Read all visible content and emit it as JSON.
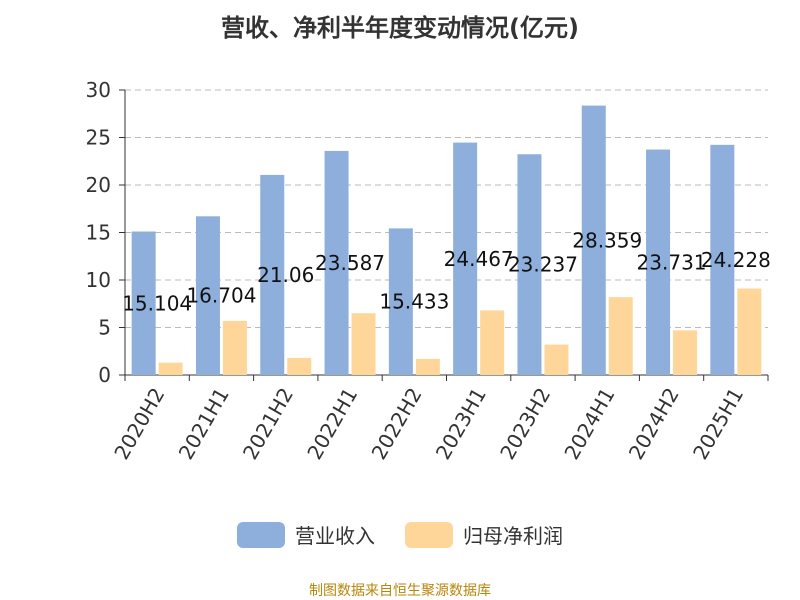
{
  "title": "营收、净利半年度变动情况(亿元)",
  "source": "制图数据来自恒生聚源数据库",
  "colors": {
    "revenue": "#8eaedb",
    "profit": "#ffd699",
    "grid": "#bbbbbb",
    "axis": "#333333"
  },
  "chart_data": {
    "type": "bar",
    "categories": [
      "2020H2",
      "2021H1",
      "2021H2",
      "2022H1",
      "2022H2",
      "2023H1",
      "2023H2",
      "2024H1",
      "2024H2",
      "2025H1"
    ],
    "series": [
      {
        "name": "营业收入",
        "values": [
          15.104,
          16.704,
          21.06,
          23.587,
          15.433,
          24.467,
          23.237,
          28.359,
          23.731,
          24.228
        ],
        "labels": [
          "15.104",
          "16.704",
          "21.06",
          "23.587",
          "15.433",
          "24.467",
          "23.237",
          "28.359",
          "23.731",
          "24.228"
        ]
      },
      {
        "name": "归母净利润",
        "values": [
          1.3,
          5.7,
          1.8,
          6.5,
          1.7,
          6.8,
          3.2,
          8.2,
          4.7,
          9.1
        ]
      }
    ],
    "yticks": [
      0,
      5,
      10,
      15,
      20,
      25,
      30
    ],
    "ylim": [
      0,
      30
    ],
    "grid": true,
    "legend": "bottom"
  }
}
